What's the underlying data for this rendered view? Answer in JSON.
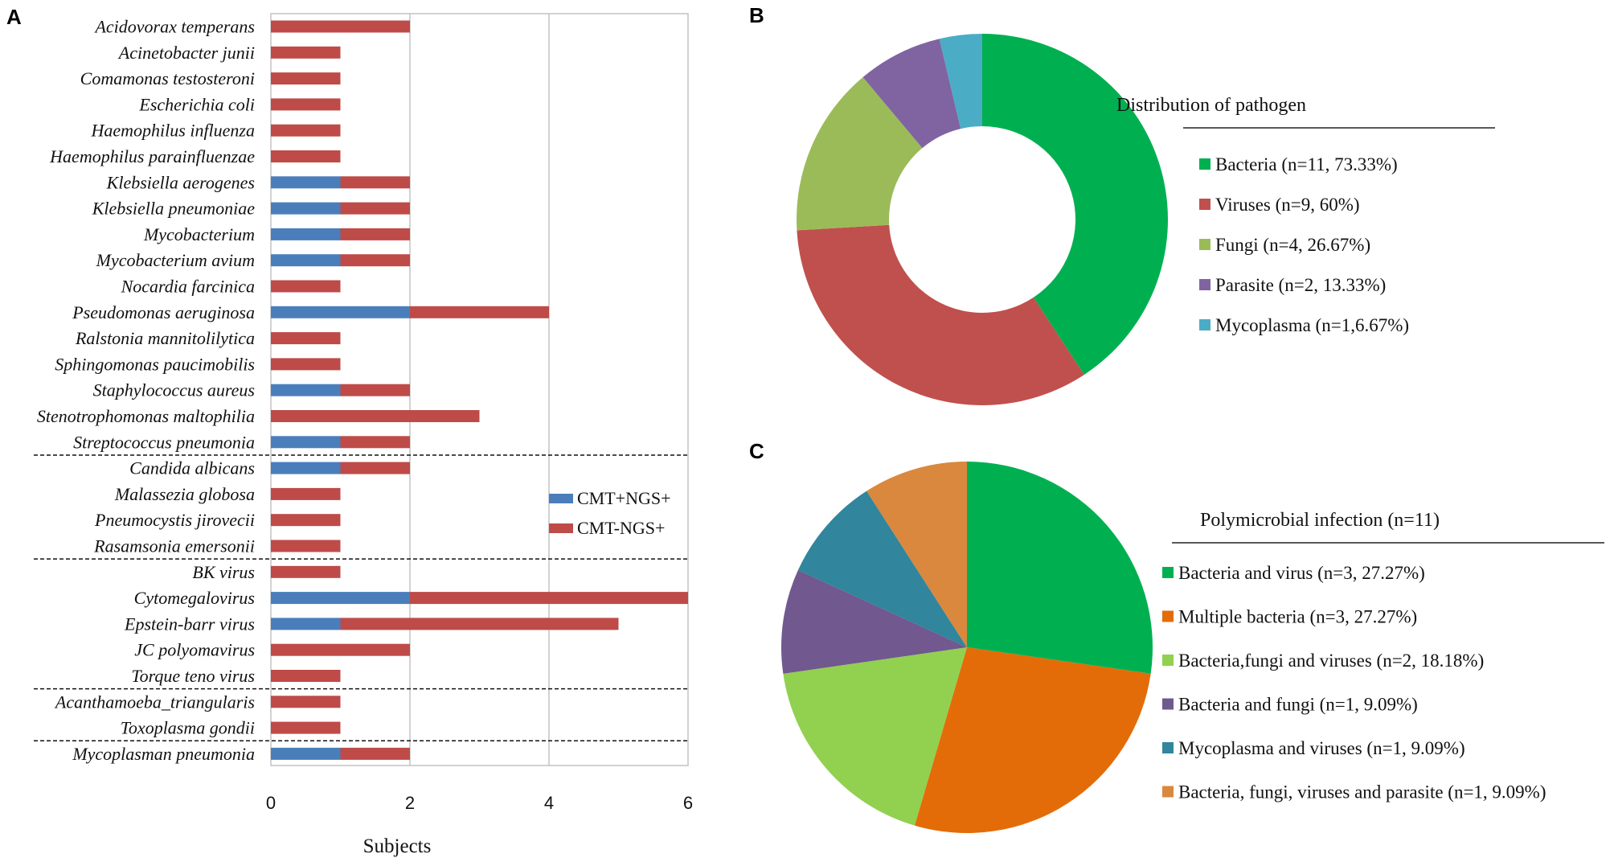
{
  "chart_data": [
    {
      "panel": "A",
      "type": "bar",
      "orientation": "horizontal",
      "stacked": true,
      "categories": [
        "Acidovorax temperans",
        "Acinetobacter junii",
        "Comamonas testosteroni",
        "Escherichia coli",
        "Haemophilus influenza",
        "Haemophilus parainfluenzae",
        "Klebsiella aerogenes",
        "Klebsiella pneumoniae",
        "Mycobacterium",
        "Mycobacterium avium",
        "Nocardia farcinica",
        "Pseudomonas aeruginosa",
        "Ralstonia mannitolilytica",
        "Sphingomonas paucimobilis",
        "Staphylococcus aureus",
        "Stenotrophomonas maltophilia",
        "Streptococcus pneumonia",
        "Candida albicans",
        "Malassezia globosa",
        "Pneumocystis jirovecii",
        "Rasamsonia emersonii",
        "BK virus",
        "Cytomegalovirus",
        "Epstein-barr virus",
        "JC polyomavirus",
        "Torque teno virus",
        "Acanthamoeba_triangularis",
        "Toxoplasma gondii",
        "Mycoplasman pneumonia"
      ],
      "series": [
        {
          "name": "CMT+NGS+",
          "color": "#4a7ebb",
          "values": [
            0,
            0,
            0,
            0,
            0,
            0,
            1,
            1,
            1,
            1,
            0,
            2,
            0,
            0,
            1,
            0,
            1,
            1,
            0,
            0,
            0,
            0,
            2,
            1,
            0,
            0,
            0,
            0,
            1
          ]
        },
        {
          "name": "CMT-NGS+",
          "color": "#be4b48",
          "values": [
            2,
            1,
            1,
            1,
            1,
            1,
            1,
            1,
            1,
            1,
            1,
            2,
            1,
            1,
            1,
            3,
            1,
            1,
            1,
            1,
            1,
            1,
            4,
            4,
            2,
            1,
            1,
            1,
            1
          ]
        }
      ],
      "group_separators_after": [
        16,
        20,
        25,
        27
      ],
      "xlabel": "Subjects",
      "xlim": [
        0,
        6
      ],
      "xticks": [
        0,
        2,
        4,
        6
      ],
      "grid": true,
      "legend_position": "right"
    },
    {
      "panel": "B",
      "type": "pie",
      "donut": true,
      "title": "Distribution of pathogen",
      "slices": [
        {
          "label": "Bacteria (n=11, 73.33%)",
          "value": 11,
          "color": "#00b050"
        },
        {
          "label": "Viruses (n=9, 60%)",
          "value": 9,
          "color": "#c0504d"
        },
        {
          "label": "Fungi (n=4, 26.67%)",
          "value": 4,
          "color": "#9bbb59"
        },
        {
          "label": "Parasite (n=2, 13.33%)",
          "value": 2,
          "color": "#8064a2"
        },
        {
          "label": "Mycoplasma (n=1,6.67%)",
          "value": 1,
          "color": "#4bacc6"
        }
      ],
      "legend_position": "right"
    },
    {
      "panel": "C",
      "type": "pie",
      "title": "Polymicrobial infection (n=11)",
      "slices": [
        {
          "label": "Bacteria and virus (n=3, 27.27%)",
          "value": 3,
          "color": "#00b050"
        },
        {
          "label": "Multiple bacteria (n=3, 27.27%)",
          "value": 3,
          "color": "#e36c09"
        },
        {
          "label": "Bacteria,fungi and viruses (n=2, 18.18%)",
          "value": 2,
          "color": "#92d050"
        },
        {
          "label": "Bacteria and fungi (n=1, 9.09%)",
          "value": 1,
          "color": "#71588f"
        },
        {
          "label": "Mycoplasma and viruses (n=1, 9.09%)",
          "value": 1,
          "color": "#31859c"
        },
        {
          "label": "Bacteria, fungi, viruses and parasite (n=1, 9.09%)",
          "value": 1,
          "color": "#d9883e"
        }
      ],
      "legend_position": "right"
    }
  ]
}
